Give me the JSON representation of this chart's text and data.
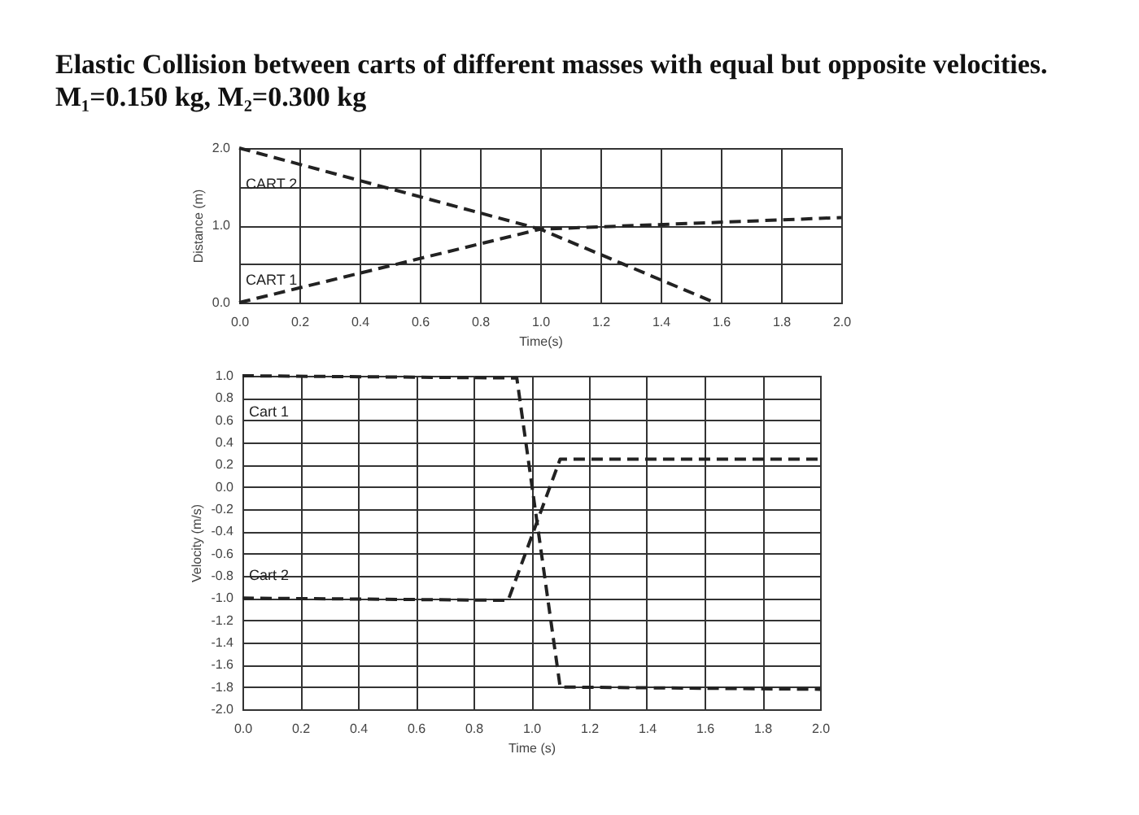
{
  "chart_data": [
    {
      "type": "line",
      "title": "Elastic Collision between carts of different masses with equal but opposite velocities. M₁=0.150 kg, M₂=0.300 kg",
      "xlabel": "Time(s)",
      "ylabel": "Distance (m)",
      "xlim": [
        0,
        2
      ],
      "ylim": [
        0,
        2
      ],
      "xticks": [
        {
          "value": 0,
          "label": "0.0"
        },
        {
          "value": 0.2,
          "label": "0.2"
        },
        {
          "value": 0.4,
          "label": "0.4"
        },
        {
          "value": 0.6,
          "label": "0.6"
        },
        {
          "value": 0.8,
          "label": "0.8"
        },
        {
          "value": 1,
          "label": "1.0"
        },
        {
          "value": 1.2,
          "label": "1.2"
        },
        {
          "value": 1.4,
          "label": "1.4"
        },
        {
          "value": 1.6,
          "label": "1.6"
        },
        {
          "value": 1.8,
          "label": "1.8"
        },
        {
          "value": 2,
          "label": "2.0"
        }
      ],
      "yticks": [
        {
          "value": 0,
          "label": "0.0"
        },
        {
          "value": 0.5,
          "label": null
        },
        {
          "value": 1,
          "label": "1.0"
        },
        {
          "value": 1.5,
          "label": null
        },
        {
          "value": 2,
          "label": "2.0"
        }
      ],
      "grid": true,
      "legend": false,
      "line_style": "dashed",
      "series": [
        {
          "name": "CART 2",
          "color": "#222222",
          "x": [
            0,
            1.0,
            2.0
          ],
          "values": [
            2.0,
            0.95,
            1.1
          ]
        },
        {
          "name": "CART 1",
          "color": "#222222",
          "x": [
            0,
            1.0,
            1.58
          ],
          "values": [
            0.0,
            0.95,
            0.0
          ]
        }
      ]
    },
    {
      "type": "line",
      "xlabel": "Time (s)",
      "ylabel": "Velocity (m/s)",
      "xlim": [
        0,
        2
      ],
      "ylim": [
        -2,
        1
      ],
      "xticks": [
        {
          "value": 0,
          "label": "0.0"
        },
        {
          "value": 0.2,
          "label": "0.2"
        },
        {
          "value": 0.4,
          "label": "0.4"
        },
        {
          "value": 0.6,
          "label": "0.6"
        },
        {
          "value": 0.8,
          "label": "0.8"
        },
        {
          "value": 1,
          "label": "1.0"
        },
        {
          "value": 1.2,
          "label": "1.2"
        },
        {
          "value": 1.4,
          "label": "1.4"
        },
        {
          "value": 1.6,
          "label": "1.6"
        },
        {
          "value": 1.8,
          "label": "1.8"
        },
        {
          "value": 2,
          "label": "2.0"
        }
      ],
      "yticks": [
        {
          "value": -2,
          "label": "-2.0"
        },
        {
          "value": -1.8,
          "label": "-1.8"
        },
        {
          "value": -1.6,
          "label": "-1.6"
        },
        {
          "value": -1.4,
          "label": "-1.4"
        },
        {
          "value": -1.2,
          "label": "-1.2"
        },
        {
          "value": -1,
          "label": "-1.0"
        },
        {
          "value": -0.8,
          "label": "-0.8"
        },
        {
          "value": -0.6,
          "label": "-0.6"
        },
        {
          "value": -0.4,
          "label": "-0.4"
        },
        {
          "value": -0.2,
          "label": "-0.2"
        },
        {
          "value": 0,
          "label": "0.0"
        },
        {
          "value": 0.2,
          "label": "0.2"
        },
        {
          "value": 0.4,
          "label": "0.4"
        },
        {
          "value": 0.6,
          "label": "0.6"
        },
        {
          "value": 0.8,
          "label": "0.8"
        },
        {
          "value": 1,
          "label": "1.0"
        }
      ],
      "grid": true,
      "legend": false,
      "line_style": "dashed",
      "series": [
        {
          "name": "Cart 1",
          "color": "#222222",
          "x": [
            0,
            0.95,
            1.1,
            2.0
          ],
          "values": [
            1.0,
            0.98,
            -1.8,
            -1.82
          ]
        },
        {
          "name": "Cart 2",
          "color": "#222222",
          "x": [
            0,
            0.92,
            1.1,
            2.0
          ],
          "values": [
            -1.0,
            -1.02,
            0.25,
            0.25
          ]
        }
      ]
    }
  ]
}
